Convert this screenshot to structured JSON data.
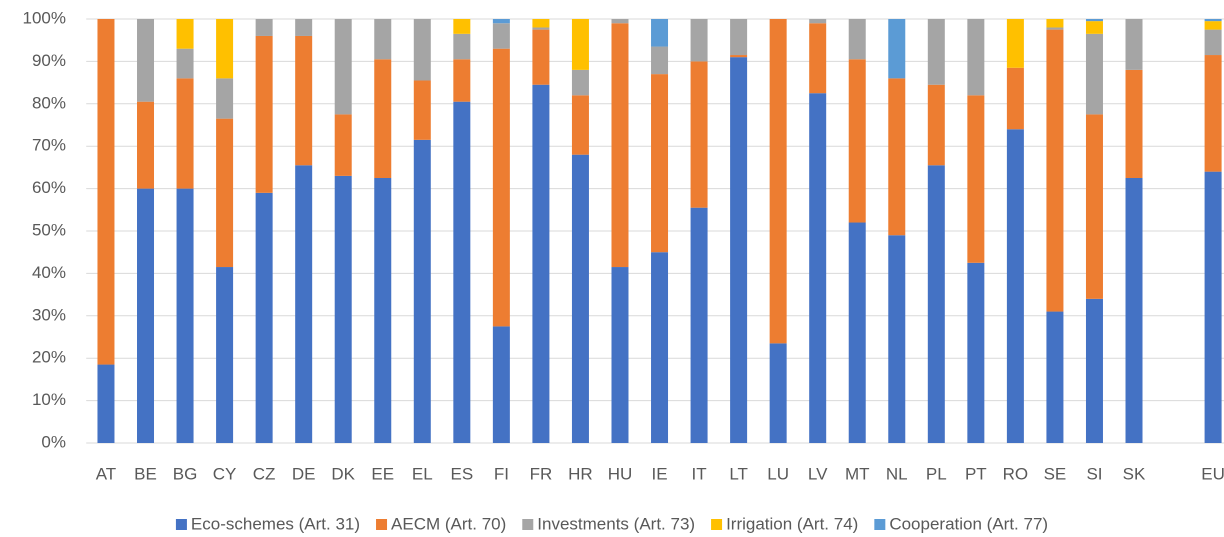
{
  "chart_data": {
    "type": "stacked_bar",
    "categories": [
      "AT",
      "BE",
      "BG",
      "CY",
      "CZ",
      "DE",
      "DK",
      "EE",
      "EL",
      "ES",
      "FI",
      "FR",
      "HR",
      "HU",
      "IE",
      "IT",
      "LT",
      "LU",
      "LV",
      "MT",
      "NL",
      "PL",
      "PT",
      "RO",
      "SE",
      "SI",
      "SK",
      null,
      "EU"
    ],
    "series": [
      {
        "name": "Eco-schemes (Art. 31)",
        "color": "#4472c4",
        "values": [
          18.5,
          60,
          60,
          41.5,
          59,
          65.5,
          63,
          62.5,
          71.5,
          80.5,
          27.5,
          84.5,
          68,
          41.5,
          45,
          55.5,
          91,
          23.5,
          82.5,
          52,
          49,
          65.5,
          42.5,
          74,
          31,
          34,
          62.5,
          null,
          64
        ]
      },
      {
        "name": "AECM (Art. 70)",
        "color": "#ed7d31",
        "values": [
          81.5,
          20.5,
          26,
          35,
          37,
          30.5,
          14.5,
          28,
          14,
          10,
          65.5,
          13,
          14,
          57.5,
          42,
          34.5,
          0.5,
          76.5,
          16.5,
          38.5,
          37,
          19,
          39.5,
          14.5,
          66.5,
          43.5,
          25.5,
          null,
          27.5
        ]
      },
      {
        "name": "Investments (Art. 73)",
        "color": "#a5a5a5",
        "values": [
          0,
          19.5,
          7,
          9.5,
          4,
          4,
          22.5,
          9.5,
          14.5,
          6,
          6,
          0.5,
          6,
          1,
          6.5,
          10,
          8.5,
          0,
          1,
          9.5,
          0,
          15.5,
          18,
          0,
          0.5,
          19,
          12,
          null,
          6
        ]
      },
      {
        "name": "Irrigation (Art. 74)",
        "color": "#ffc000",
        "values": [
          0,
          0,
          7,
          14,
          0,
          0,
          0,
          0,
          0,
          3.5,
          0,
          2,
          12,
          0,
          0,
          0,
          0,
          0,
          0,
          0,
          0,
          0,
          0,
          11.5,
          2,
          3,
          0,
          null,
          2
        ]
      },
      {
        "name": "Cooperation (Art. 77)",
        "color": "#5b9bd5",
        "values": [
          0,
          0,
          0,
          0,
          0,
          0,
          0,
          0,
          0,
          0,
          1,
          0,
          0,
          0,
          6.5,
          0,
          0,
          0,
          0,
          0,
          14,
          0,
          0,
          0,
          0,
          0.5,
          0,
          null,
          0.5
        ]
      }
    ],
    "ylim": [
      0,
      100
    ],
    "yticks": [
      {
        "value": 0,
        "label": "0%"
      },
      {
        "value": 10,
        "label": "10%"
      },
      {
        "value": 20,
        "label": "20%"
      },
      {
        "value": 30,
        "label": "30%"
      },
      {
        "value": 40,
        "label": "40%"
      },
      {
        "value": 50,
        "label": "50%"
      },
      {
        "value": 60,
        "label": "60%"
      },
      {
        "value": 70,
        "label": "70%"
      },
      {
        "value": 80,
        "label": "80%"
      },
      {
        "value": 90,
        "label": "90%"
      },
      {
        "value": 100,
        "label": "100%"
      }
    ],
    "grid": true
  }
}
